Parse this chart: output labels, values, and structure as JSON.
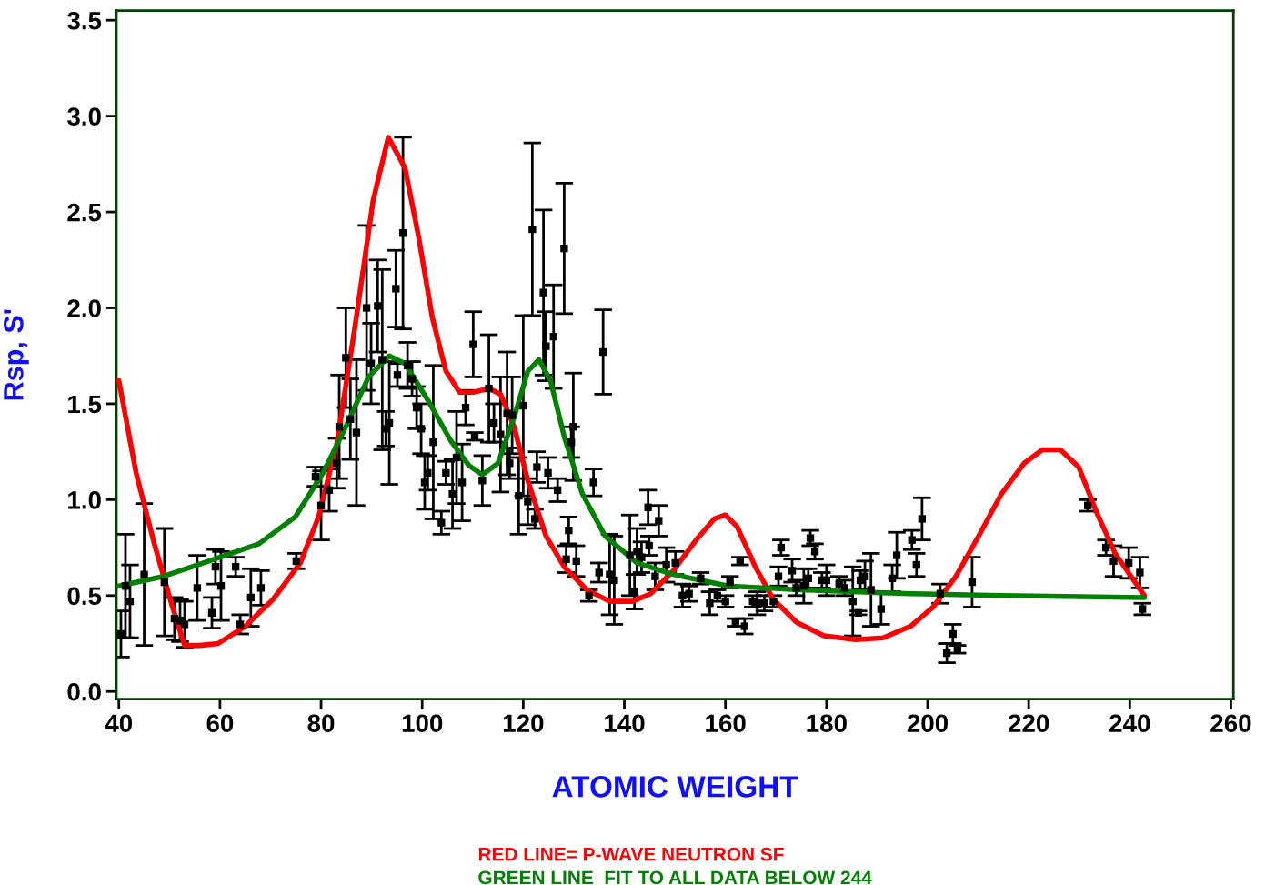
{
  "chart_data": {
    "type": "scatter",
    "xlabel": "ATOMIC WEIGHT",
    "ylabel": "Rsp, S'",
    "xlim": [
      39.5,
      260.5
    ],
    "ylim": [
      -0.04,
      3.55
    ],
    "xticks": [
      40,
      60,
      80,
      100,
      120,
      140,
      160,
      180,
      200,
      220,
      240,
      260
    ],
    "yticks": [
      {
        "value": 0,
        "label": "0.0"
      },
      {
        "value": 0.5,
        "label": "0.5"
      },
      {
        "value": 1,
        "label": "1.0"
      },
      {
        "value": 1.5,
        "label": "1.5"
      },
      {
        "value": 2,
        "label": "2.0"
      },
      {
        "value": 2.5,
        "label": "2.5"
      },
      {
        "value": 3,
        "label": "3.0"
      },
      {
        "value": 3.5,
        "label": "3.5"
      }
    ],
    "grid": false,
    "legend": "bottom",
    "series": [
      {
        "type": "scatter",
        "color": "#000000",
        "marker": "square",
        "x": [
          40.4,
          41.3,
          42.2,
          45.0,
          49.0,
          51.0,
          52.1,
          53.0,
          55.5,
          58.4,
          59.1,
          60.2,
          63.1,
          64.0,
          66.1,
          68.1,
          75.1,
          78.9,
          80.0,
          81.6,
          83.1,
          83.6,
          84.9,
          85.8,
          87.0,
          89.0,
          89.9,
          91.2,
          92.1,
          92.8,
          93.5,
          94.8,
          95.1,
          96.2,
          97.1,
          98.0,
          98.9,
          99.8,
          100.5,
          101.1,
          102.2,
          103.8,
          104.7,
          106.0,
          106.8,
          107.9,
          108.6,
          110.1,
          110.4,
          111.9,
          113.2,
          114.2,
          115.5,
          116.8,
          117.3,
          117.8,
          119.1,
          120.0,
          120.9,
          121.8,
          122.3,
          122.7,
          124.0,
          124.5,
          124.9,
          126.0,
          126.8,
          128.1,
          128.5,
          129.0,
          129.5,
          129.9,
          130.5,
          133.0,
          133.9,
          135.0,
          135.8,
          137.1,
          138.0,
          141.1,
          142.0,
          142.5,
          143.4,
          144.7,
          144.9,
          146.1,
          146.8,
          148.3,
          150.1,
          151.5,
          152.8,
          155.1,
          156.9,
          158.4,
          160.0,
          160.9,
          162.0,
          162.9,
          163.8,
          165.4,
          166.3,
          167.7,
          169.5,
          170.5,
          171.0,
          173.2,
          174.0,
          175.5,
          176.4,
          176.8,
          177.7,
          179.1,
          180.0,
          182.5,
          183.6,
          185.2,
          186.3,
          186.7,
          187.6,
          188.8,
          190.8,
          193.0,
          193.9,
          196.9,
          197.8,
          198.9,
          202.5,
          203.8,
          205.0,
          205.9,
          208.8,
          231.7,
          235.3,
          236.8,
          239.8,
          242.0,
          242.5
        ],
        "values": [
          0.3,
          0.55,
          0.47,
          0.61,
          0.57,
          0.38,
          0.37,
          0.35,
          0.54,
          0.41,
          0.65,
          0.55,
          0.65,
          0.35,
          0.49,
          0.54,
          0.68,
          1.12,
          0.97,
          1.05,
          1.19,
          1.38,
          1.74,
          1.42,
          1.35,
          2.0,
          1.71,
          2.01,
          1.73,
          1.37,
          1.4,
          2.1,
          1.65,
          2.39,
          1.7,
          1.63,
          1.48,
          1.37,
          1.09,
          1.14,
          1.3,
          0.88,
          1.14,
          1.03,
          1.22,
          1.09,
          1.48,
          1.81,
          1.33,
          1.1,
          1.58,
          1.4,
          1.34,
          1.45,
          1.19,
          1.44,
          1.02,
          1.49,
          0.99,
          2.41,
          0.9,
          1.17,
          2.08,
          1.8,
          1.14,
          1.85,
          1.05,
          2.31,
          0.69,
          0.84,
          1.3,
          1.38,
          0.68,
          0.5,
          1.09,
          0.62,
          1.77,
          0.61,
          0.58,
          0.71,
          0.52,
          0.73,
          0.7,
          0.96,
          0.76,
          0.6,
          0.89,
          0.66,
          0.67,
          0.5,
          0.51,
          0.59,
          0.46,
          0.5,
          0.47,
          0.57,
          0.36,
          0.68,
          0.34,
          0.47,
          0.46,
          0.46,
          0.47,
          0.6,
          0.75,
          0.63,
          0.54,
          0.55,
          0.59,
          0.8,
          0.73,
          0.58,
          0.58,
          0.56,
          0.54,
          0.47,
          0.41,
          0.58,
          0.6,
          0.53,
          0.43,
          0.59,
          0.71,
          0.79,
          0.66,
          0.9,
          0.51,
          0.2,
          0.3,
          0.22,
          0.57,
          0.97,
          0.75,
          0.68,
          0.67,
          0.62,
          0.43
        ],
        "errors": [
          0.12,
          0.27,
          0.19,
          0.37,
          0.28,
          0.11,
          0.11,
          0.12,
          0.17,
          0.08,
          0.09,
          0.18,
          0.05,
          0.05,
          0.15,
          0.09,
          0.04,
          0.05,
          0.18,
          0.11,
          0.13,
          0.27,
          0.26,
          0.21,
          0.38,
          0.43,
          0.21,
          0.24,
          0.47,
          0.09,
          0.32,
          0.2,
          0.06,
          0.5,
          0.12,
          0.09,
          0.11,
          0.13,
          0.14,
          0.09,
          0.4,
          0.06,
          0.06,
          0.18,
          0.24,
          0.2,
          0.09,
          0.17,
          0.02,
          0.13,
          0.28,
          0.1,
          0.3,
          0.32,
          0.08,
          0.2,
          0.2,
          0.47,
          0.12,
          0.45,
          0.05,
          0.08,
          0.43,
          0.18,
          0.08,
          0.27,
          0.06,
          0.34,
          0.07,
          0.07,
          0.08,
          0.28,
          0.08,
          0.03,
          0.07,
          0.05,
          0.22,
          0.21,
          0.23,
          0.21,
          0.09,
          0.12,
          0.08,
          0.09,
          0.05,
          0.07,
          0.08,
          0.09,
          0.06,
          0.06,
          0.04,
          0.03,
          0.06,
          0.03,
          0.03,
          0.03,
          0.02,
          0.02,
          0.04,
          0.03,
          0.06,
          0.04,
          0.03,
          0.05,
          0.04,
          0.06,
          0.04,
          0.09,
          0.05,
          0.04,
          0.04,
          0.04,
          0.08,
          0.04,
          0.04,
          0.18,
          0.01,
          0.05,
          0.08,
          0.19,
          0.08,
          0.07,
          0.12,
          0.05,
          0.06,
          0.11,
          0.05,
          0.05,
          0.05,
          0.02,
          0.13,
          0.03,
          0.04,
          0.08,
          0.08,
          0.08,
          0.03
        ]
      },
      {
        "type": "line",
        "name": "RED LINE= P-WAVE NEUTRON SF",
        "color": "#ff0000",
        "x": [
          40,
          43.4,
          47,
          50.6,
          53,
          56,
          59.6,
          65,
          70.5,
          75.9,
          79.5,
          83.1,
          86.7,
          90.3,
          93.3,
          96.6,
          99.3,
          102,
          104.7,
          107.4,
          110.1,
          113.2,
          115.5,
          118.2,
          120.9,
          124.5,
          128.1,
          132.6,
          137.1,
          141.6,
          145.2,
          149.7,
          154.2,
          157.8,
          160,
          162.3,
          165.9,
          169.5,
          174.1,
          179.5,
          185.8,
          191.2,
          196.6,
          201.1,
          205.6,
          210.1,
          214.6,
          219.1,
          222.7,
          226.3,
          229.9,
          233.5,
          237.1,
          242.9
        ],
        "values": [
          1.62,
          1.14,
          0.77,
          0.44,
          0.24,
          0.24,
          0.25,
          0.34,
          0.48,
          0.67,
          0.91,
          1.29,
          1.9,
          2.56,
          2.89,
          2.73,
          2.37,
          1.95,
          1.67,
          1.56,
          1.56,
          1.58,
          1.55,
          1.38,
          1.1,
          0.81,
          0.65,
          0.53,
          0.47,
          0.47,
          0.51,
          0.63,
          0.79,
          0.9,
          0.92,
          0.86,
          0.65,
          0.48,
          0.36,
          0.29,
          0.27,
          0.28,
          0.34,
          0.44,
          0.6,
          0.81,
          1.03,
          1.19,
          1.26,
          1.26,
          1.17,
          0.93,
          0.72,
          0.5
        ]
      },
      {
        "type": "line",
        "name": "GREEN LINE  FIT TO ALL DATA BELOW 244",
        "color": "#008000",
        "x": [
          40,
          48.8,
          57.8,
          67.7,
          74.9,
          80.4,
          84.9,
          89.4,
          93.5,
          96.6,
          101.1,
          105.6,
          109.2,
          111.9,
          115,
          118.2,
          120.9,
          123.1,
          125.4,
          128.1,
          131.7,
          136.2,
          142.5,
          149.7,
          160.5,
          174.9,
          196.6,
          214.6,
          242.9
        ],
        "values": [
          0.55,
          0.6,
          0.68,
          0.77,
          0.91,
          1.14,
          1.38,
          1.64,
          1.75,
          1.71,
          1.52,
          1.31,
          1.18,
          1.13,
          1.19,
          1.43,
          1.67,
          1.73,
          1.62,
          1.33,
          1.03,
          0.81,
          0.67,
          0.61,
          0.55,
          0.53,
          0.51,
          0.5,
          0.49
        ]
      }
    ]
  }
}
